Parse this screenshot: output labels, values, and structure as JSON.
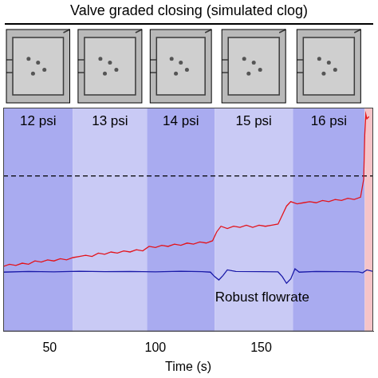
{
  "chart_data": {
    "type": "line",
    "title": "Valve graded closing (simulated clog)",
    "x_label": "Time (s)",
    "xlim": [
      28,
      203
    ],
    "xticks": [
      50,
      100,
      150
    ],
    "ylim": [
      0,
      100
    ],
    "grid": false,
    "tick_labels": "x",
    "bands": [
      {
        "start": 28,
        "end": 61,
        "label": "12 psi",
        "color": "#a9abf0"
      },
      {
        "start": 61,
        "end": 96,
        "label": "13 psi",
        "color": "#c9caf5"
      },
      {
        "start": 96,
        "end": 128,
        "label": "14 psi",
        "color": "#a9abf0"
      },
      {
        "start": 128,
        "end": 165,
        "label": "15 psi",
        "color": "#c9caf5"
      },
      {
        "start": 165,
        "end": 199,
        "label": "16 psi",
        "color": "#a9abf0"
      },
      {
        "start": 199,
        "end": 203,
        "color": "#f6c4c8"
      }
    ],
    "annotations": [
      "Robust flowrate"
    ],
    "series": [
      {
        "color": "#e3141c",
        "x": [
          28,
          31,
          34,
          37,
          40,
          43,
          46,
          49,
          52,
          55,
          58,
          61,
          64,
          67,
          70,
          73,
          76,
          79,
          82,
          85,
          88,
          91,
          94,
          97,
          100,
          103,
          106,
          109,
          112,
          115,
          118,
          121,
          124,
          127,
          129,
          131,
          134,
          137,
          140,
          143,
          146,
          149,
          152,
          155,
          158,
          160,
          162,
          164,
          167,
          170,
          173,
          176,
          179,
          182,
          185,
          188,
          191,
          194,
          197,
          198.5,
          199,
          199.5,
          200,
          201
        ],
        "values": [
          29,
          30,
          29.5,
          30.5,
          30,
          31.5,
          31,
          32,
          31.5,
          32.5,
          32,
          33,
          33.5,
          34,
          33.5,
          35,
          34.5,
          35.5,
          35,
          36,
          35.5,
          36.5,
          36,
          38,
          37.5,
          38.5,
          38,
          39,
          38.5,
          39.5,
          39,
          40,
          39.5,
          40.5,
          44.5,
          47,
          46,
          47,
          46.5,
          47.5,
          46.5,
          47.5,
          47,
          47.5,
          48,
          52,
          56,
          58,
          57,
          57.5,
          58,
          57.5,
          58.5,
          58,
          59,
          58.5,
          59.5,
          59,
          60,
          68,
          88,
          97,
          95,
          96
        ]
      },
      {
        "color": "#1a1aa8",
        "x": [
          28,
          40,
          52,
          64,
          76,
          88,
          100,
          112,
          122,
          126,
          128,
          130,
          132,
          134,
          138,
          150,
          158,
          160,
          162,
          164,
          166,
          168,
          176,
          188,
          196,
          198,
          200,
          203
        ],
        "values": [
          26.5,
          26.8,
          26.6,
          26.9,
          26.7,
          26.8,
          26.6,
          26.9,
          26.7,
          26.5,
          24.5,
          23,
          25,
          27.5,
          26.8,
          26.7,
          26.6,
          24.5,
          21.5,
          23.5,
          28,
          26.5,
          26.8,
          26.7,
          26.6,
          26.2,
          27.5,
          26.8
        ]
      },
      {
        "color": "#000000",
        "line_style": "dashed",
        "x": [
          28,
          203
        ],
        "values": [
          69.5,
          69.5
        ]
      }
    ]
  }
}
